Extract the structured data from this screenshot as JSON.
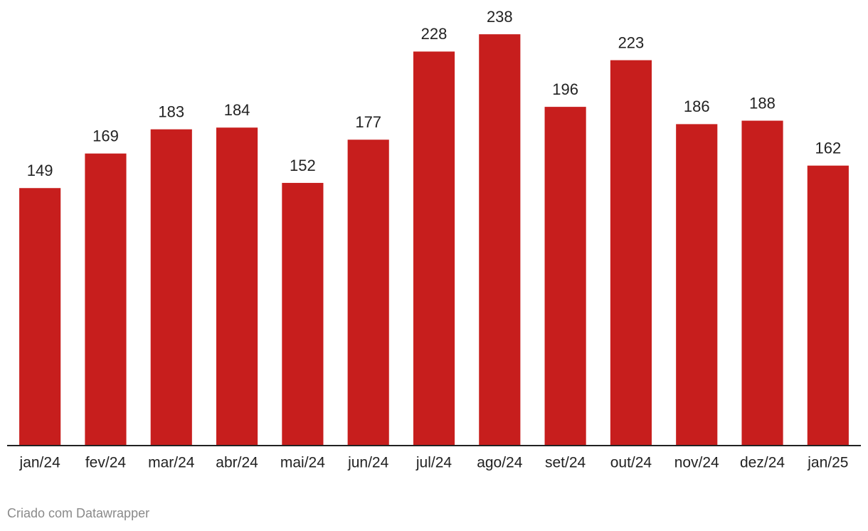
{
  "chart_data": {
    "type": "bar",
    "categories": [
      "jan/24",
      "fev/24",
      "mar/24",
      "abr/24",
      "mai/24",
      "jun/24",
      "jul/24",
      "ago/24",
      "set/24",
      "out/24",
      "nov/24",
      "dez/24",
      "jan/25"
    ],
    "values": [
      149,
      169,
      183,
      184,
      152,
      177,
      228,
      238,
      196,
      223,
      186,
      188,
      162
    ],
    "color": "#c71e1d",
    "ylim": [
      0,
      250
    ],
    "footer": "Criado com Datawrapper"
  }
}
